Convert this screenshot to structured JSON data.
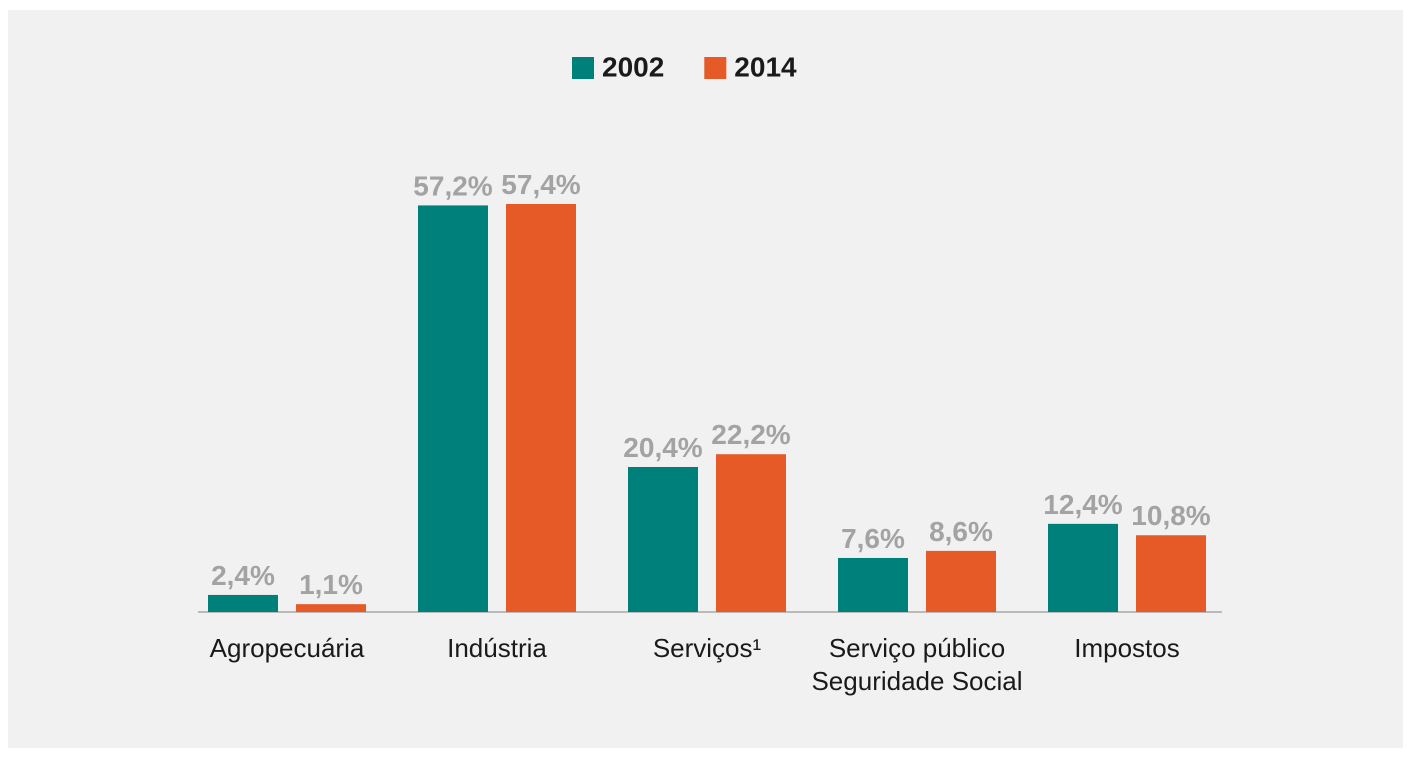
{
  "chart_data": {
    "type": "bar",
    "categories": [
      "Agropecuária",
      "Indústria",
      "Serviços¹",
      "Serviço público Seguridade Social",
      "Impostos"
    ],
    "series": [
      {
        "name": "2002",
        "color": "#00807a",
        "values": [
          2.4,
          57.2,
          20.4,
          7.6,
          12.4
        ],
        "value_labels": [
          "2,4%",
          "57,2%",
          "20,4%",
          "7,6%",
          "12,4%"
        ]
      },
      {
        "name": "2014",
        "color": "#e55a27",
        "values": [
          1.1,
          57.4,
          22.2,
          8.6,
          10.8
        ],
        "value_labels": [
          "1,1%",
          "57,4%",
          "22,2%",
          "8,6%",
          "10,8%"
        ]
      }
    ],
    "legend": "top"
  }
}
